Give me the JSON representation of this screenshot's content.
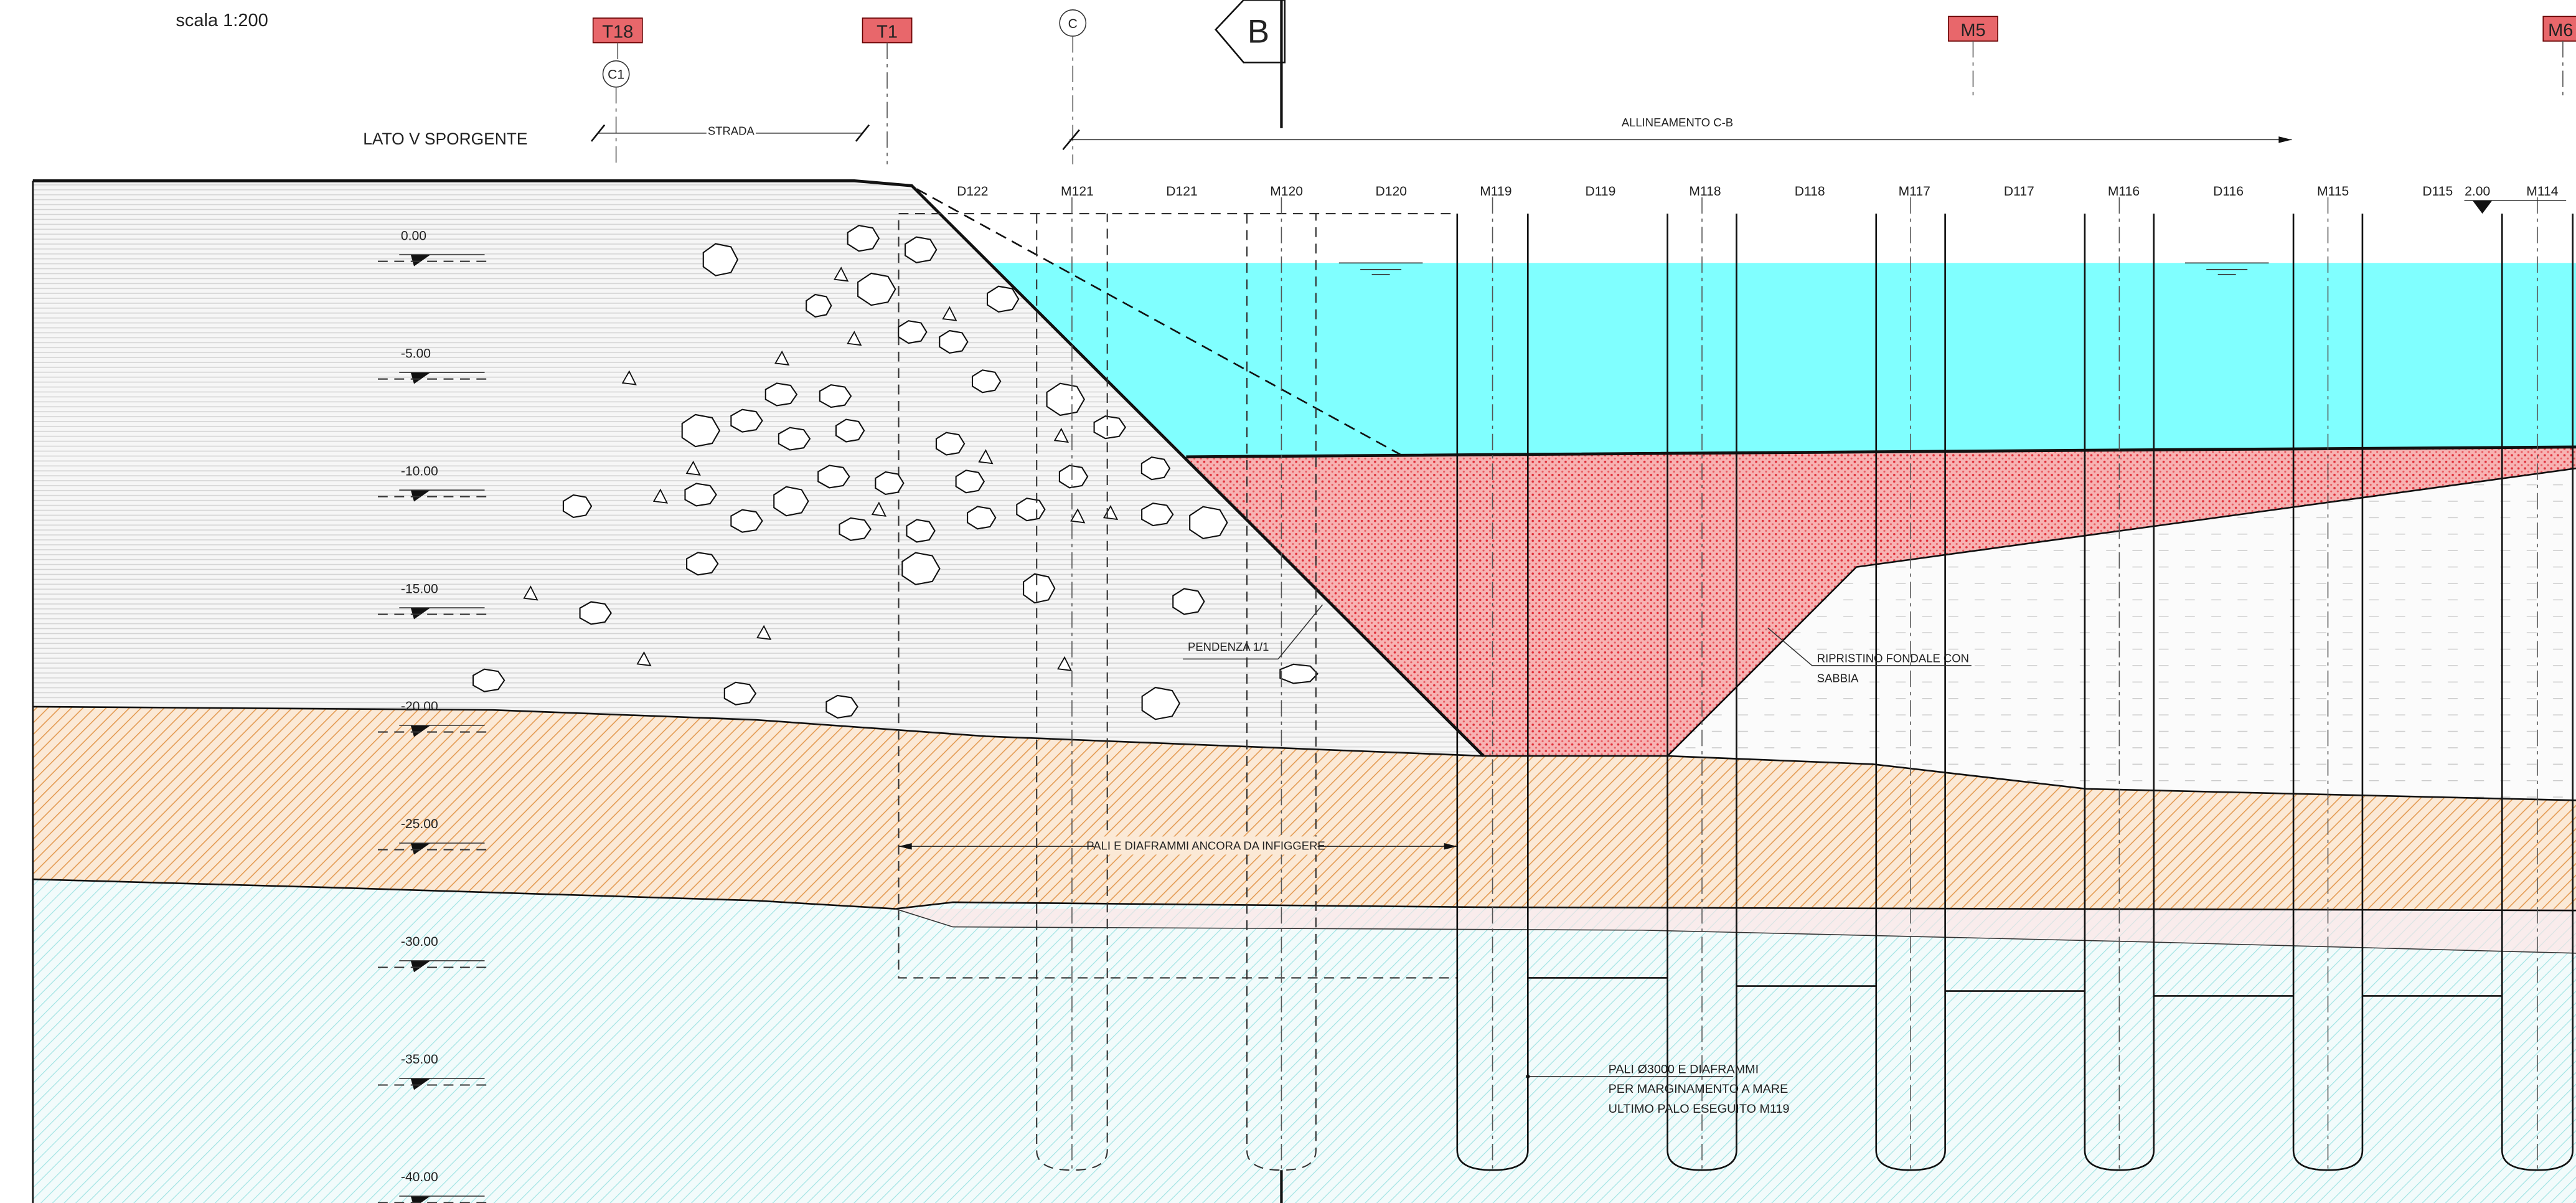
{
  "scale": "scala 1:200",
  "markers": {
    "t18": "T18",
    "t1": "T1",
    "c": "C",
    "b": "B",
    "m5": "M5",
    "m6": "M6",
    "c1": "C1"
  },
  "labels": {
    "lato": "LATO V SPORGENTE",
    "strada": "STRADA",
    "allineamento": "ALLINEAMENTO C-B",
    "water_level": "2.00",
    "pendenza": "PENDENZA 1/1",
    "ripristino": [
      "RIPRISTINO FONDALE CON",
      "SABBIA"
    ],
    "pali_infiggere": "PALI E DIAFRAMMI ANCORA DA INFIGGERE",
    "pali_mare": [
      "PALI Ø3000 E DIAFRAMMI",
      "PER MARGINAMENTO A MARE",
      "ULTIMO PALO ESEGUITO M119"
    ]
  },
  "columns": [
    "D122",
    "M121",
    "D121",
    "M120",
    "D120",
    "M119",
    "D119",
    "M118",
    "D118",
    "M117",
    "D117",
    "M116",
    "D116",
    "M115",
    "D115",
    "M114"
  ],
  "elevations": [
    "0.00",
    "-5.00",
    "-10.00",
    "-15.00",
    "-20.00",
    "-25.00",
    "-30.00",
    "-35.00",
    "-40.00"
  ]
}
